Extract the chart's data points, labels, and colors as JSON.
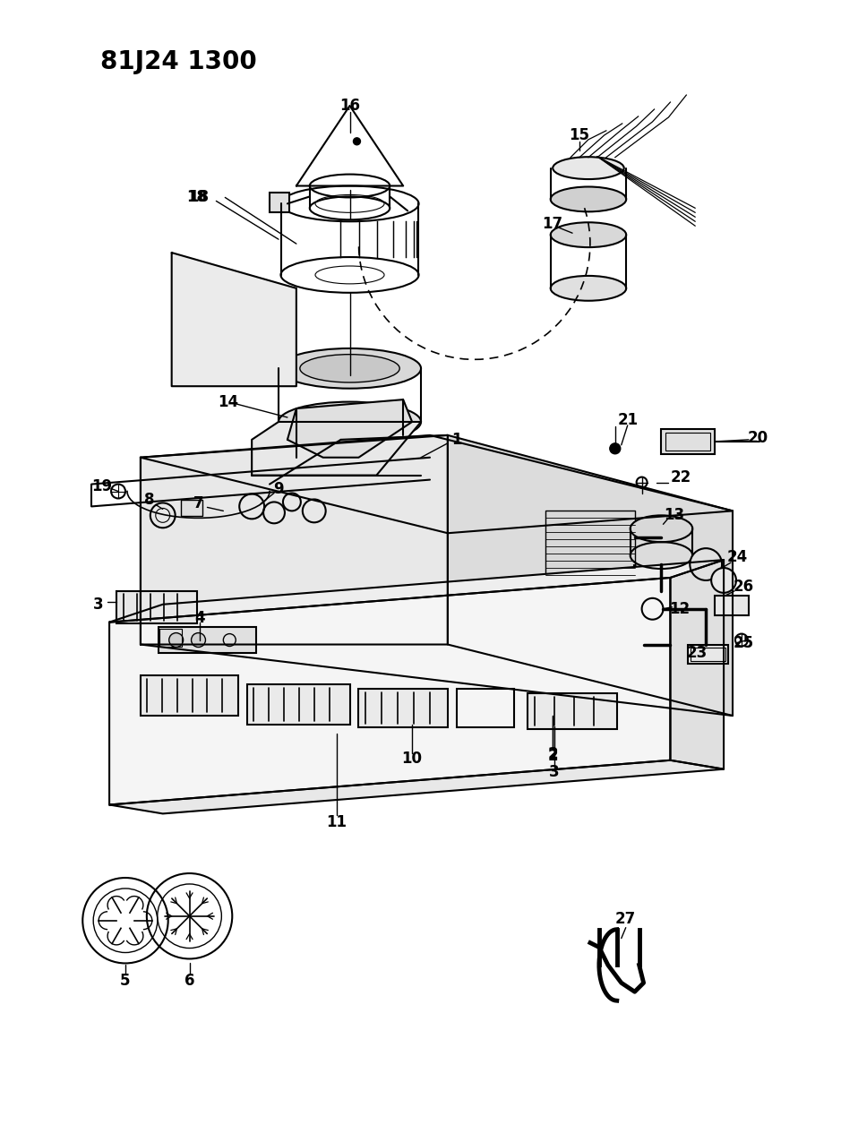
{
  "title": "81J24 1300",
  "bg_color": "#ffffff",
  "line_color": "#000000",
  "figsize": [
    9.58,
    12.75
  ],
  "dpi": 100
}
